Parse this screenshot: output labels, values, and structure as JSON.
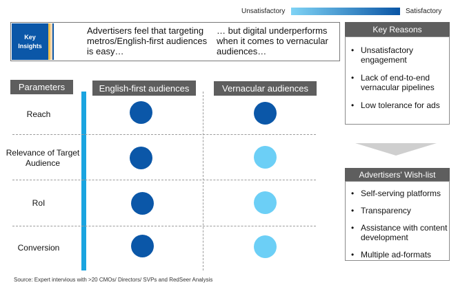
{
  "scale": {
    "low_label": "Unsatisfactory",
    "high_label": "Satisfactory",
    "colors": {
      "low": "#7fd3f5",
      "high": "#0a55a5"
    }
  },
  "key_insights": {
    "label_line1": "Key",
    "label_line2": "Insights",
    "left_text": "Advertisers feel that targeting metros/English-first audiences is easy…",
    "right_text": "… but digital underperforms when it comes to vernacular audiences…"
  },
  "key_reasons": {
    "title": "Key Reasons",
    "items": [
      "Unsatisfactory engagement",
      "Lack of end-to-end vernacular pipelines",
      "Low tolerance for ads"
    ]
  },
  "wish_list": {
    "title": "Advertisers' Wish-list",
    "items": [
      "Self-serving platforms",
      "Transparency",
      "Assistance with content development",
      "Multiple ad-formats"
    ]
  },
  "table": {
    "parameters_header": "Parameters",
    "columns": [
      "English-first audiences",
      "Vernacular audiences"
    ],
    "rows": [
      {
        "parameter": "Reach",
        "english": "satisfactory",
        "vernacular": "satisfactory"
      },
      {
        "parameter": "Relevance of Target Audience",
        "english": "satisfactory",
        "vernacular": "unsatisfactory"
      },
      {
        "parameter": "RoI",
        "english": "satisfactory",
        "vernacular": "unsatisfactory"
      },
      {
        "parameter": "Conversion",
        "english": "satisfactory",
        "vernacular": "unsatisfactory"
      }
    ]
  },
  "source": "Source: Expert intervious with >20 CMOs/ Directors/ SVPs and RedSeer Analysis"
}
